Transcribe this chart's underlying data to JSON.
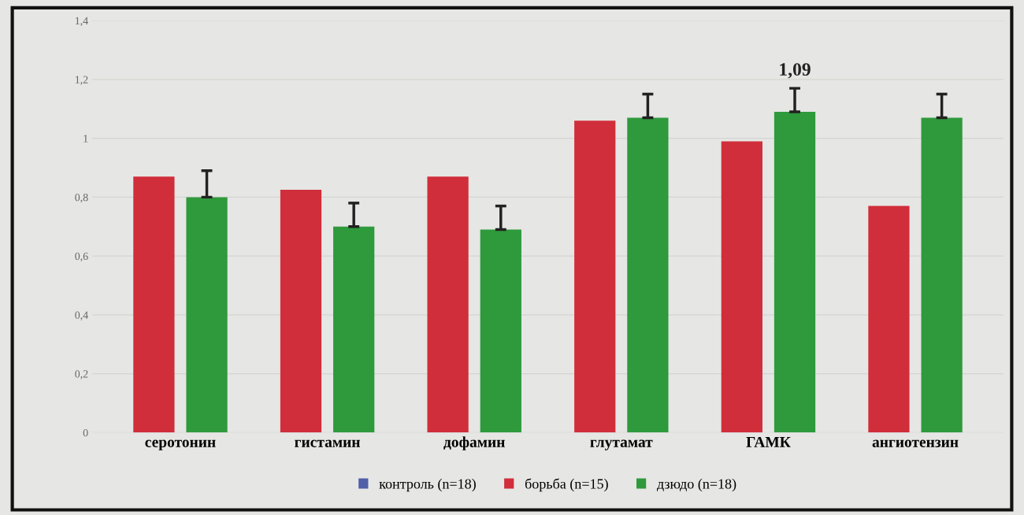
{
  "chart_data": {
    "type": "bar",
    "categories": [
      "серотонин",
      "гистамин",
      "дофамин",
      "глутамат",
      "ГАМК",
      "ангиотензин"
    ],
    "series": [
      {
        "name": "контроль (n=18)",
        "color": "#4f5fa8",
        "values": [
          null,
          null,
          null,
          null,
          null,
          null
        ]
      },
      {
        "name": "борьба (n=15)",
        "color": "#d02e3a",
        "values": [
          0.87,
          0.825,
          0.87,
          1.06,
          0.99,
          0.77
        ]
      },
      {
        "name": "дзюдо (n=18)",
        "color": "#2e9a3c",
        "values": [
          0.8,
          0.7,
          0.69,
          1.07,
          1.09,
          1.07
        ],
        "errors": [
          0.09,
          0.08,
          0.08,
          0.08,
          0.08,
          0.08
        ],
        "value_labels": [
          null,
          null,
          null,
          null,
          "1,09",
          null
        ]
      }
    ],
    "ylim": [
      0,
      1.4
    ],
    "yticks": [
      0,
      {
        "value": 0.2,
        "label": "0,2"
      },
      {
        "value": 0.4,
        "label": "0,4"
      },
      {
        "value": 0.6,
        "label": "0,6"
      },
      {
        "value": 0.8,
        "label": "0,8"
      },
      1,
      {
        "value": 1.2,
        "label": "1,2"
      },
      {
        "value": 1.4,
        "label": "1,4"
      }
    ],
    "grid": "y",
    "legend": "bottom"
  }
}
